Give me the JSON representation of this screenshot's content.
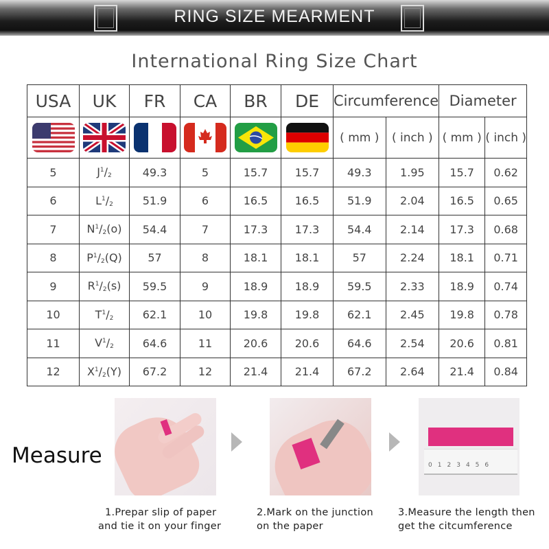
{
  "banner": {
    "title": "RING SIZE MEARMENT"
  },
  "chart": {
    "title": "International Ring Size Chart",
    "headers": [
      "USA",
      "UK",
      "FR",
      "CA",
      "BR",
      "DE",
      "Circumference",
      "Diameter"
    ],
    "flags": [
      "us-flag-icon",
      "uk-flag-icon",
      "france-flag-icon",
      "canada-flag-icon",
      "brazil-flag-icon",
      "germany-flag-icon"
    ],
    "units": [
      "( mm )",
      "( inch )",
      "( mm )",
      "( inch )"
    ],
    "rows": [
      {
        "usa": "5",
        "uk": {
          "base": "J",
          "num": "1",
          "den": "2",
          "extra": ""
        },
        "fr": "49.3",
        "ca": "5",
        "br": "15.7",
        "de": "15.7",
        "circ_mm": "49.3",
        "circ_in": "1.95",
        "dia_mm": "15.7",
        "dia_in": "0.62"
      },
      {
        "usa": "6",
        "uk": {
          "base": "L",
          "num": "1",
          "den": "2",
          "extra": ""
        },
        "fr": "51.9",
        "ca": "6",
        "br": "16.5",
        "de": "16.5",
        "circ_mm": "51.9",
        "circ_in": "2.04",
        "dia_mm": "16.5",
        "dia_in": "0.65"
      },
      {
        "usa": "7",
        "uk": {
          "base": "N",
          "num": "1",
          "den": "2",
          "extra": "(o)"
        },
        "fr": "54.4",
        "ca": "7",
        "br": "17.3",
        "de": "17.3",
        "circ_mm": "54.4",
        "circ_in": "2.14",
        "dia_mm": "17.3",
        "dia_in": "0.68"
      },
      {
        "usa": "8",
        "uk": {
          "base": "P",
          "num": "1",
          "den": "2",
          "extra": "(Q)"
        },
        "fr": "57",
        "ca": "8",
        "br": "18.1",
        "de": "18.1",
        "circ_mm": "57",
        "circ_in": "2.24",
        "dia_mm": "18.1",
        "dia_in": "0.71"
      },
      {
        "usa": "9",
        "uk": {
          "base": "R",
          "num": "1",
          "den": "2",
          "extra": "(s)"
        },
        "fr": "59.5",
        "ca": "9",
        "br": "18.9",
        "de": "18.9",
        "circ_mm": "59.5",
        "circ_in": "2.33",
        "dia_mm": "18.9",
        "dia_in": "0.74"
      },
      {
        "usa": "10",
        "uk": {
          "base": "T",
          "num": "1",
          "den": "2",
          "extra": ""
        },
        "fr": "62.1",
        "ca": "10",
        "br": "19.8",
        "de": "19.8",
        "circ_mm": "62.1",
        "circ_in": "2.45",
        "dia_mm": "19.8",
        "dia_in": "0.78"
      },
      {
        "usa": "11",
        "uk": {
          "base": "V",
          "num": "1",
          "den": "2",
          "extra": ""
        },
        "fr": "64.6",
        "ca": "11",
        "br": "20.6",
        "de": "20.6",
        "circ_mm": "64.6",
        "circ_in": "2.54",
        "dia_mm": "20.6",
        "dia_in": "0.81"
      },
      {
        "usa": "12",
        "uk": {
          "base": "X",
          "num": "1",
          "den": "2",
          "extra": "(Y)"
        },
        "fr": "67.2",
        "ca": "12",
        "br": "21.4",
        "de": "21.4",
        "circ_mm": "67.2",
        "circ_in": "2.64",
        "dia_mm": "21.4",
        "dia_in": "0.84"
      }
    ]
  },
  "measure": {
    "label": "Measure",
    "ruler_ticks": [
      "0",
      "1",
      "2",
      "3",
      "4",
      "5",
      "6"
    ],
    "accent": "#e0307f",
    "steps": [
      {
        "line1": "1.Prepar slip of paper",
        "line2": "and tie it on your finger"
      },
      {
        "line1": "2.Mark on the junction",
        "line2": "on the paper"
      },
      {
        "line1": "3.Measure the length then",
        "line2": "get the citcumference"
      }
    ]
  }
}
